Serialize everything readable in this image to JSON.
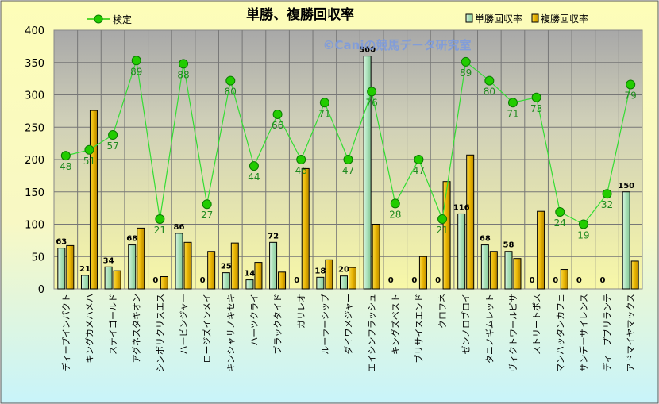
{
  "chart_data": {
    "type": "bar",
    "title": "単勝、複勝回収率",
    "watermark": "©Caniの競馬データ研究室",
    "xlabel": "",
    "ylabel": "",
    "ylim": [
      0,
      400
    ],
    "yticks": [
      0,
      50,
      100,
      150,
      200,
      250,
      300,
      350,
      400
    ],
    "grid": true,
    "legend_position": "top",
    "categories": [
      "ディープインパクト",
      "キングカメハメハ",
      "ステイゴールド",
      "アグネスタキオン",
      "シンボリクリスエス",
      "ハービンジャー",
      "ロージズインメイ",
      "キンシャサノキセキ",
      "ハーツクライ",
      "ブラックタイド",
      "ガリレオ",
      "ルーラーシップ",
      "ダイワメジャー",
      "エイシンフラッシュ",
      "キングズベスト",
      "ブリサイスエンド",
      "クロフネ",
      "ゼンノロブロイ",
      "タニノギムレット",
      "ヴィクトワールピサ",
      "ストリートボス",
      "マンハッタンカフェ",
      "サンデーサイレンス",
      "ディープブリランテ",
      "アドマイヤマックス"
    ],
    "series": [
      {
        "name": "単勝回収率",
        "type": "bar",
        "color": "#b8e8c8",
        "values": [
          63,
          21,
          34,
          68,
          0,
          86,
          0,
          25,
          14,
          72,
          0,
          18,
          20,
          360,
          0,
          0,
          0,
          116,
          68,
          58,
          0,
          0,
          0,
          0,
          150
        ]
      },
      {
        "name": "複勝回収率",
        "type": "bar",
        "color": "#e8b400",
        "values": [
          67,
          276,
          28,
          94,
          19,
          72,
          58,
          71,
          41,
          26,
          186,
          45,
          33,
          100,
          0,
          50,
          166,
          207,
          58,
          47,
          120,
          30,
          0,
          0,
          43
        ]
      },
      {
        "name": "検定",
        "type": "line",
        "color": "#22cc00",
        "values": [
          206,
          215,
          238,
          353,
          108,
          348,
          131,
          322,
          190,
          270,
          200,
          288,
          200,
          305,
          132,
          200,
          108,
          351,
          322,
          288,
          296,
          119,
          100,
          147,
          316
        ],
        "labels": [
          48,
          51,
          57,
          89,
          21,
          88,
          27,
          80,
          44,
          66,
          46,
          71,
          47,
          76,
          28,
          47,
          21,
          89,
          80,
          71,
          73,
          24,
          19,
          32,
          79
        ]
      }
    ]
  }
}
